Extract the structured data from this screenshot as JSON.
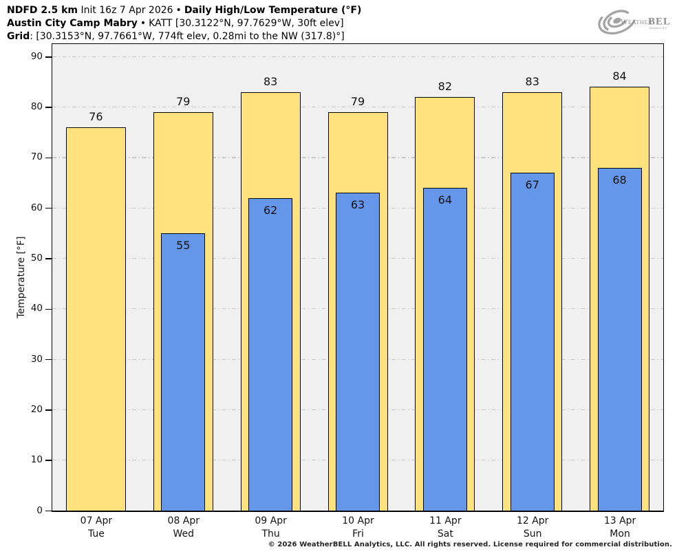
{
  "header": {
    "model": "NDFD 2.5 km",
    "init": "Init 16z 7 Apr 2026",
    "bullet1": "•",
    "product": "Daily High/Low Temperature (°F)",
    "station": "Austin City Camp Mabry",
    "bullet2": "•",
    "station_info": "KATT [30.3122°N, 97.7629°W, 30ft elev]",
    "grid_label": "Grid",
    "grid_info": ": [30.3153°N, 97.7661°W, 774ft elev, 0.28mi to the NW (317.8)°]"
  },
  "logo": {
    "weather": "Weather",
    "bell": "BELL",
    "sub": "Analytics LLC"
  },
  "chart_data": {
    "type": "bar",
    "title": "NDFD 2.5 km Daily High/Low Temperature (°F) — Austin City Camp Mabry",
    "xlabel": "",
    "ylabel": "Temperature [°F]",
    "ylim": [
      0,
      92.5
    ],
    "yticks": [
      0,
      10,
      20,
      30,
      40,
      50,
      60,
      70,
      80,
      90
    ],
    "grid": true,
    "plot_background": "#f0f0f0",
    "gridline_color": "#c8c8c8",
    "categories": [
      {
        "date": "07 Apr",
        "day": "Tue"
      },
      {
        "date": "08 Apr",
        "day": "Wed"
      },
      {
        "date": "09 Apr",
        "day": "Thu"
      },
      {
        "date": "10 Apr",
        "day": "Fri"
      },
      {
        "date": "11 Apr",
        "day": "Sat"
      },
      {
        "date": "12 Apr",
        "day": "Sun"
      },
      {
        "date": "13 Apr",
        "day": "Mon"
      }
    ],
    "series": [
      {
        "name": "Daily High",
        "color": "#ffe27d",
        "values": [
          76,
          79,
          83,
          79,
          82,
          83,
          84
        ]
      },
      {
        "name": "Daily Low",
        "color": "#6496ea",
        "values": [
          null,
          55,
          62,
          63,
          64,
          67,
          68
        ]
      }
    ]
  },
  "footer": {
    "copyright": "© 2026 WeatherBELL Analytics, LLC. All rights reserved. License required for commercial distribution."
  }
}
